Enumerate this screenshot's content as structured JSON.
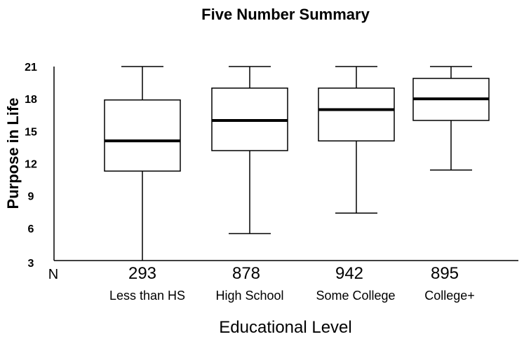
{
  "chart_data": {
    "type": "boxplot",
    "title": "Five Number Summary",
    "ylabel": "Purpose in Life",
    "xlabel": "Educational Level",
    "n_label": "N",
    "ylim": [
      3,
      21
    ],
    "yticks": [
      "3",
      "6",
      "9",
      "12",
      "15",
      "18",
      "21"
    ],
    "grid": false,
    "categories": [
      "Less than HS",
      "High School",
      "Some College",
      "College+"
    ],
    "counts": [
      "293",
      "878",
      "942",
      "895"
    ],
    "boxes": [
      {
        "min": 3,
        "q1": 11.3,
        "median": 14.1,
        "q3": 17.9,
        "max": 21
      },
      {
        "min": 5.5,
        "q1": 13.2,
        "median": 16.0,
        "q3": 19.0,
        "max": 21
      },
      {
        "min": 7.4,
        "q1": 14.1,
        "median": 17.0,
        "q3": 19.0,
        "max": 21
      },
      {
        "min": 11.4,
        "q1": 16.0,
        "median": 18.0,
        "q3": 19.9,
        "max": 21
      }
    ]
  }
}
